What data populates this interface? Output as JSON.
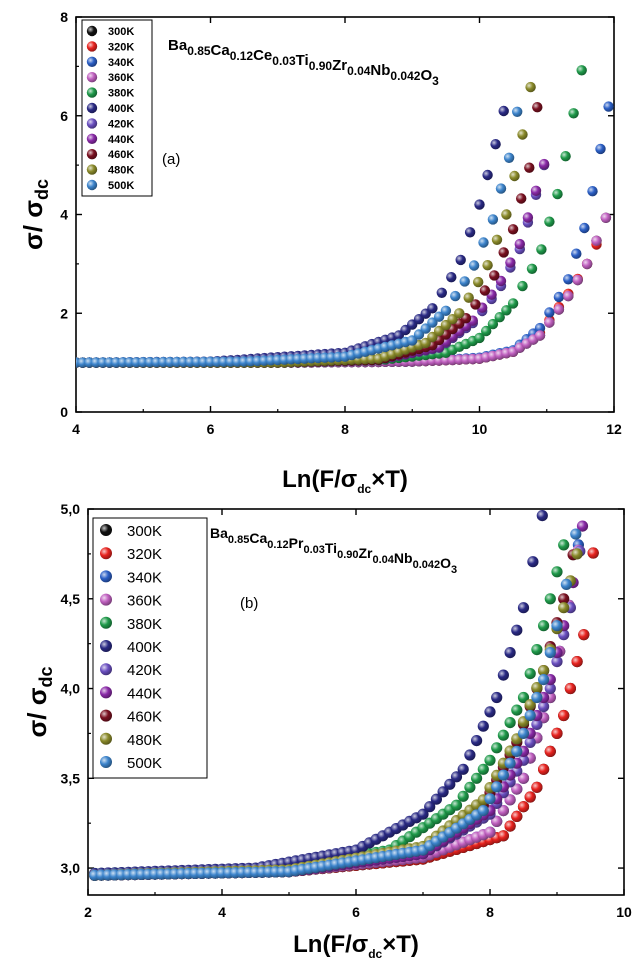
{
  "chart_data": [
    {
      "type": "scatter",
      "panel_label": "(a)",
      "formula": {
        "parts": [
          [
            "Ba",
            "0.85"
          ],
          [
            "Ca",
            "0.12"
          ],
          [
            "Ce",
            "0.03"
          ],
          [
            "Ti",
            "0.90"
          ],
          [
            "Zr",
            "0.04"
          ],
          [
            "Nb",
            "0.042"
          ],
          [
            "O",
            "3"
          ]
        ]
      },
      "xlabel": {
        "main": "Ln(F/σ",
        "sub": "dc",
        "tail": "×T)"
      },
      "ylabel": {
        "main": "σ/ σ",
        "sub": "dc"
      },
      "xlim": [
        4,
        12
      ],
      "ylim": [
        0,
        8
      ],
      "xticks": [
        4,
        6,
        8,
        10,
        12
      ],
      "xtick_labels": [
        "4",
        "6",
        "8",
        "10",
        "12"
      ],
      "yticks": [
        0,
        2,
        4,
        6,
        8
      ],
      "ytick_labels": [
        "0",
        "2",
        "4",
        "6",
        "8"
      ],
      "legend_position": "top-left",
      "x_start": 4.0,
      "series": [
        {
          "name": "300K",
          "color": "#111111",
          "onset": 10.9,
          "ymax": 4.0,
          "x": [
            4.0,
            7.0,
            9.0,
            10.0,
            10.5,
            10.9,
            11.3,
            11.6,
            11.9
          ],
          "y": [
            1.0,
            1.0,
            1.02,
            1.08,
            1.22,
            1.55,
            2.3,
            3.0,
            4.0
          ]
        },
        {
          "name": "320K",
          "color": "#e8231f",
          "onset": 10.85,
          "ymax": 3.7,
          "x": [
            4.0,
            7.0,
            9.0,
            10.0,
            10.5,
            10.9,
            11.3,
            11.6,
            11.85
          ],
          "y": [
            1.0,
            1.0,
            1.02,
            1.08,
            1.22,
            1.6,
            2.35,
            3.0,
            3.7
          ]
        },
        {
          "name": "340K",
          "color": "#2b5fc6",
          "onset": 10.8,
          "ymax": 6.4,
          "x": [
            4.0,
            7.0,
            9.0,
            10.0,
            10.5,
            10.9,
            11.3,
            11.6,
            11.95
          ],
          "y": [
            1.0,
            1.0,
            1.02,
            1.1,
            1.25,
            1.7,
            2.6,
            3.9,
            6.4
          ]
        },
        {
          "name": "360K",
          "color": "#c060c0",
          "onset": 10.8,
          "ymax": 4.0,
          "x": [
            4.0,
            7.0,
            9.0,
            10.0,
            10.5,
            10.9,
            11.3,
            11.6,
            11.9
          ],
          "y": [
            1.0,
            1.0,
            1.02,
            1.08,
            1.22,
            1.55,
            2.3,
            3.0,
            4.0
          ]
        },
        {
          "name": "380K",
          "color": "#1f9a4a",
          "onset": 9.6,
          "ymax": 7.5,
          "x": [
            4.0,
            7.0,
            8.5,
            9.5,
            10.0,
            10.5,
            10.9,
            11.2,
            11.6
          ],
          "y": [
            1.0,
            1.0,
            1.05,
            1.2,
            1.5,
            2.2,
            3.2,
            4.6,
            7.5
          ]
        },
        {
          "name": "400K",
          "color": "#2a2a85",
          "onset": 8.8,
          "ymax": 6.6,
          "x": [
            4.0,
            6.0,
            8.0,
            8.8,
            9.3,
            9.7,
            10.0,
            10.2,
            10.45
          ],
          "y": [
            1.0,
            1.02,
            1.2,
            1.55,
            2.1,
            3.0,
            4.2,
            5.2,
            6.6
          ]
        },
        {
          "name": "420K",
          "color": "#6a4fc0",
          "onset": 9.4,
          "ymax": 5.2,
          "x": [
            4.0,
            7.0,
            8.5,
            9.4,
            9.9,
            10.3,
            10.6,
            10.8,
            11.0
          ],
          "y": [
            1.0,
            1.0,
            1.06,
            1.3,
            1.8,
            2.5,
            3.3,
            4.2,
            5.2
          ]
        },
        {
          "name": "440K",
          "color": "#8a2aa8",
          "onset": 9.4,
          "ymax": 5.2,
          "x": [
            4.0,
            7.0,
            8.5,
            9.4,
            9.9,
            10.3,
            10.6,
            10.8,
            11.0
          ],
          "y": [
            1.0,
            1.0,
            1.06,
            1.32,
            1.85,
            2.6,
            3.4,
            4.3,
            5.2
          ]
        },
        {
          "name": "460K",
          "color": "#7a1020",
          "onset": 9.3,
          "ymax": 6.6,
          "x": [
            4.0,
            7.0,
            8.5,
            9.3,
            9.8,
            10.2,
            10.5,
            10.75,
            10.9
          ],
          "y": [
            1.0,
            1.0,
            1.06,
            1.35,
            1.9,
            2.7,
            3.7,
            5.0,
            6.6
          ]
        },
        {
          "name": "480K",
          "color": "#8a8a2a",
          "onset": 9.2,
          "ymax": 6.9,
          "x": [
            4.0,
            7.0,
            8.5,
            9.2,
            9.7,
            10.1,
            10.4,
            10.6,
            10.8
          ],
          "y": [
            1.0,
            1.0,
            1.08,
            1.4,
            2.0,
            2.9,
            4.0,
            5.3,
            6.9
          ]
        },
        {
          "name": "500K",
          "color": "#3c84cc",
          "onset": 9.0,
          "ymax": 6.8,
          "x": [
            4.0,
            6.5,
            8.0,
            9.0,
            9.5,
            9.9,
            10.2,
            10.45,
            10.65
          ],
          "y": [
            1.0,
            1.02,
            1.12,
            1.45,
            2.05,
            2.9,
            3.9,
            5.2,
            6.8
          ]
        }
      ]
    },
    {
      "type": "scatter",
      "panel_label": "(b)",
      "formula": {
        "parts": [
          [
            "Ba",
            "0.85"
          ],
          [
            "Ca",
            "0.12"
          ],
          [
            "Pr",
            "0.03"
          ],
          [
            "Ti",
            "0.90"
          ],
          [
            "Zr",
            "0.04"
          ],
          [
            "Nb",
            "0.042"
          ],
          [
            "O",
            "3"
          ]
        ]
      },
      "xlabel": {
        "main": "Ln(F/σ",
        "sub": "dc",
        "tail": "×T)"
      },
      "ylabel": {
        "main": "σ/ σ",
        "sub": "dc"
      },
      "xlim": [
        2,
        10
      ],
      "ylim": [
        2.85,
        5.0
      ],
      "xticks": [
        2,
        4,
        6,
        8,
        10
      ],
      "xtick_labels": [
        "2",
        "4",
        "6",
        "8",
        "10"
      ],
      "yticks": [
        3.0,
        3.5,
        4.0,
        4.5,
        5.0
      ],
      "ytick_labels": [
        "3,0",
        "3,5",
        "4,0",
        "4,5",
        "5,0"
      ],
      "legend_position": "top-left",
      "x_start": 2.1,
      "series": [
        {
          "name": "300K",
          "color": "#111111",
          "x": [
            2.1,
            5.0,
            7.0,
            8.2,
            8.7,
            9.1,
            9.4,
            9.6
          ],
          "y": [
            2.96,
            2.98,
            3.05,
            3.18,
            3.45,
            3.85,
            4.3,
            4.95
          ]
        },
        {
          "name": "320K",
          "color": "#e8231f",
          "x": [
            2.1,
            5.0,
            7.0,
            8.2,
            8.7,
            9.1,
            9.4,
            9.6
          ],
          "y": [
            2.96,
            2.98,
            3.05,
            3.18,
            3.45,
            3.85,
            4.3,
            4.95
          ]
        },
        {
          "name": "340K",
          "color": "#2b5fc6",
          "x": [
            2.1,
            5.0,
            7.0,
            8.0,
            8.5,
            8.9,
            9.2,
            9.4
          ],
          "y": [
            2.96,
            2.98,
            3.06,
            3.2,
            3.5,
            3.95,
            4.5,
            5.0
          ]
        },
        {
          "name": "360K",
          "color": "#c060c0",
          "x": [
            2.1,
            5.0,
            7.0,
            8.0,
            8.5,
            8.9,
            9.2,
            9.4
          ],
          "y": [
            2.96,
            2.98,
            3.06,
            3.2,
            3.5,
            3.95,
            4.5,
            4.95
          ]
        },
        {
          "name": "380K",
          "color": "#1f9a4a",
          "x": [
            2.1,
            5.0,
            6.5,
            7.5,
            8.0,
            8.5,
            8.8,
            9.1
          ],
          "y": [
            2.97,
            3.0,
            3.1,
            3.35,
            3.6,
            3.95,
            4.35,
            4.8
          ]
        },
        {
          "name": "400K",
          "color": "#2a2a85",
          "x": [
            2.1,
            4.5,
            6.0,
            7.0,
            7.6,
            8.1,
            8.5,
            8.8
          ],
          "y": [
            2.97,
            3.0,
            3.1,
            3.3,
            3.55,
            3.95,
            4.45,
            5.0
          ]
        },
        {
          "name": "420K",
          "color": "#6a4fc0",
          "x": [
            2.1,
            5.0,
            7.0,
            8.0,
            8.5,
            8.9,
            9.2,
            9.4
          ],
          "y": [
            2.96,
            2.98,
            3.08,
            3.3,
            3.6,
            4.0,
            4.45,
            4.9
          ]
        },
        {
          "name": "440K",
          "color": "#8a2aa8",
          "x": [
            2.1,
            5.0,
            7.0,
            8.0,
            8.5,
            8.9,
            9.2,
            9.4
          ],
          "y": [
            2.96,
            2.98,
            3.08,
            3.32,
            3.65,
            4.05,
            4.5,
            4.95
          ]
        },
        {
          "name": "460K",
          "color": "#7a1020",
          "x": [
            2.1,
            5.0,
            7.0,
            7.9,
            8.4,
            8.8,
            9.1,
            9.3
          ],
          "y": [
            2.96,
            2.98,
            3.1,
            3.35,
            3.7,
            4.1,
            4.5,
            4.85
          ]
        },
        {
          "name": "480K",
          "color": "#8a8a2a",
          "x": [
            2.1,
            5.0,
            7.0,
            7.9,
            8.4,
            8.8,
            9.1,
            9.3
          ],
          "y": [
            2.96,
            2.99,
            3.12,
            3.38,
            3.72,
            4.1,
            4.45,
            4.75
          ]
        },
        {
          "name": "500K",
          "color": "#3c84cc",
          "x": [
            2.1,
            5.0,
            7.0,
            7.9,
            8.4,
            8.8,
            9.1,
            9.3
          ],
          "y": [
            2.96,
            2.98,
            3.1,
            3.32,
            3.65,
            4.05,
            4.5,
            4.9
          ]
        }
      ]
    }
  ]
}
